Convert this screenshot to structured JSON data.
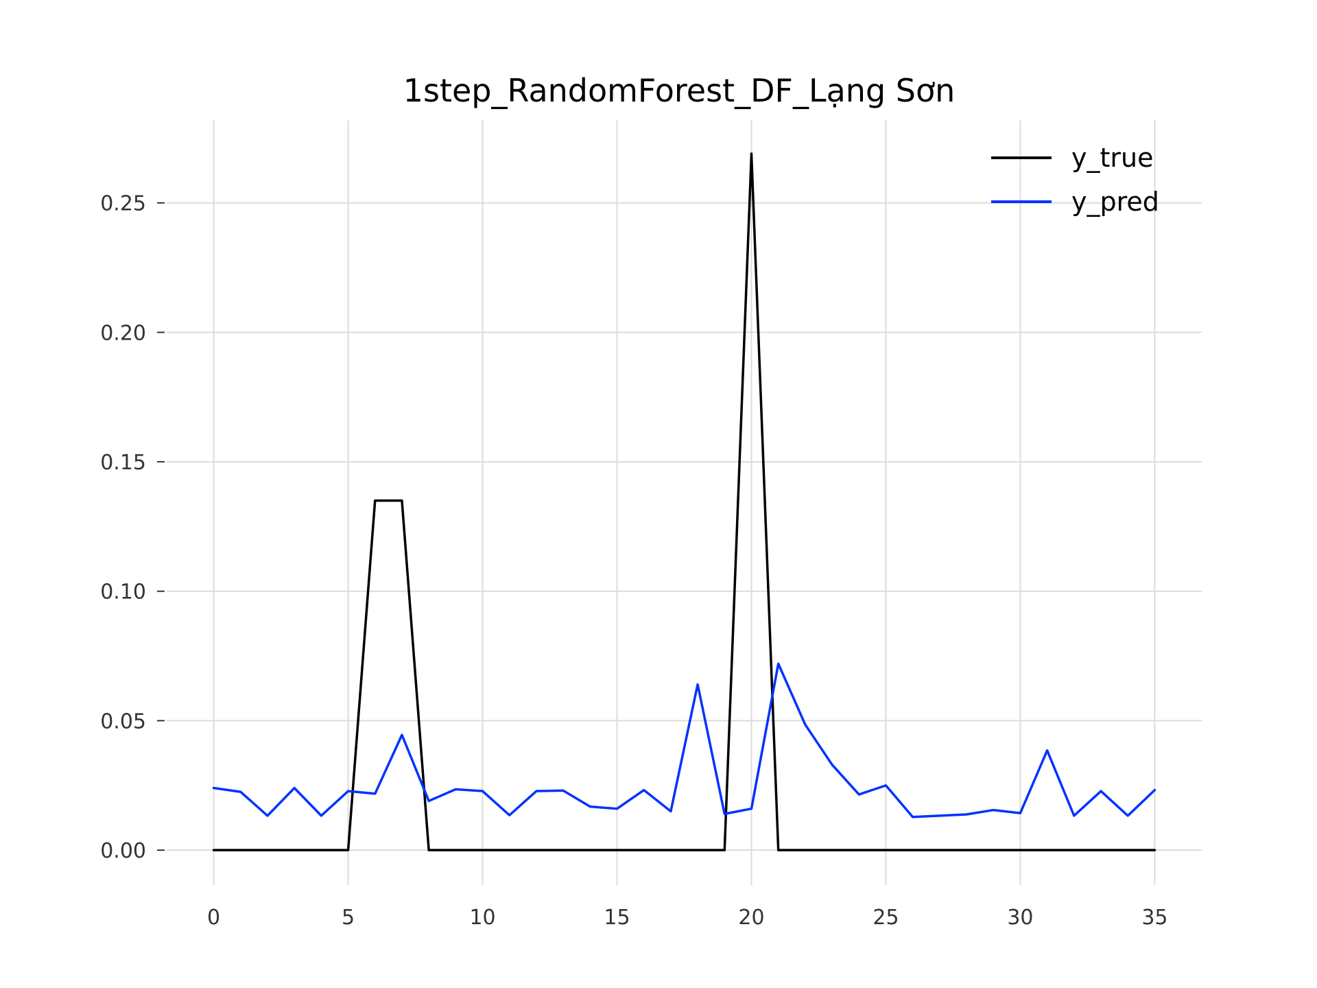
{
  "chart_data": {
    "type": "line",
    "title": "1step_RandomForest_DF_Lạng Sơn",
    "xlabel": "",
    "ylabel": "",
    "xlim": [
      -1.75,
      36.75
    ],
    "ylim": [
      -0.0135,
      0.282
    ],
    "x_ticks": [
      0,
      5,
      10,
      15,
      20,
      25,
      30,
      35
    ],
    "x_tick_labels": [
      "0",
      "5",
      "10",
      "15",
      "20",
      "25",
      "30",
      "35"
    ],
    "y_ticks": [
      0.0,
      0.05,
      0.1,
      0.15,
      0.2,
      0.25
    ],
    "y_tick_labels": [
      "0.00",
      "0.05",
      "0.10",
      "0.15",
      "0.20",
      "0.25"
    ],
    "grid": true,
    "legend_position": "top-right",
    "x": [
      0,
      1,
      2,
      3,
      4,
      5,
      6,
      7,
      8,
      9,
      10,
      11,
      12,
      13,
      14,
      15,
      16,
      17,
      18,
      19,
      20,
      21,
      22,
      23,
      24,
      25,
      26,
      27,
      28,
      29,
      30,
      31,
      32,
      33,
      34,
      35
    ],
    "series": [
      {
        "name": "y_true",
        "color": "#000000",
        "values": [
          0,
          0,
          0,
          0,
          0,
          0,
          0.135,
          0.135,
          0,
          0,
          0,
          0,
          0,
          0,
          0,
          0,
          0,
          0,
          0,
          0,
          0.269,
          0,
          0,
          0,
          0,
          0,
          0,
          0,
          0,
          0,
          0,
          0,
          0,
          0,
          0,
          0
        ]
      },
      {
        "name": "y_pred",
        "color": "#0033ff",
        "values": [
          0.024,
          0.0225,
          0.0133,
          0.024,
          0.0133,
          0.0228,
          0.0218,
          0.0445,
          0.019,
          0.0235,
          0.0228,
          0.0135,
          0.0228,
          0.023,
          0.0168,
          0.016,
          0.0232,
          0.015,
          0.064,
          0.014,
          0.016,
          0.072,
          0.0485,
          0.033,
          0.0215,
          0.025,
          0.0128,
          0.0133,
          0.0138,
          0.0155,
          0.0143,
          0.0385,
          0.0133,
          0.0228,
          0.0133,
          0.0232
        ]
      }
    ]
  }
}
